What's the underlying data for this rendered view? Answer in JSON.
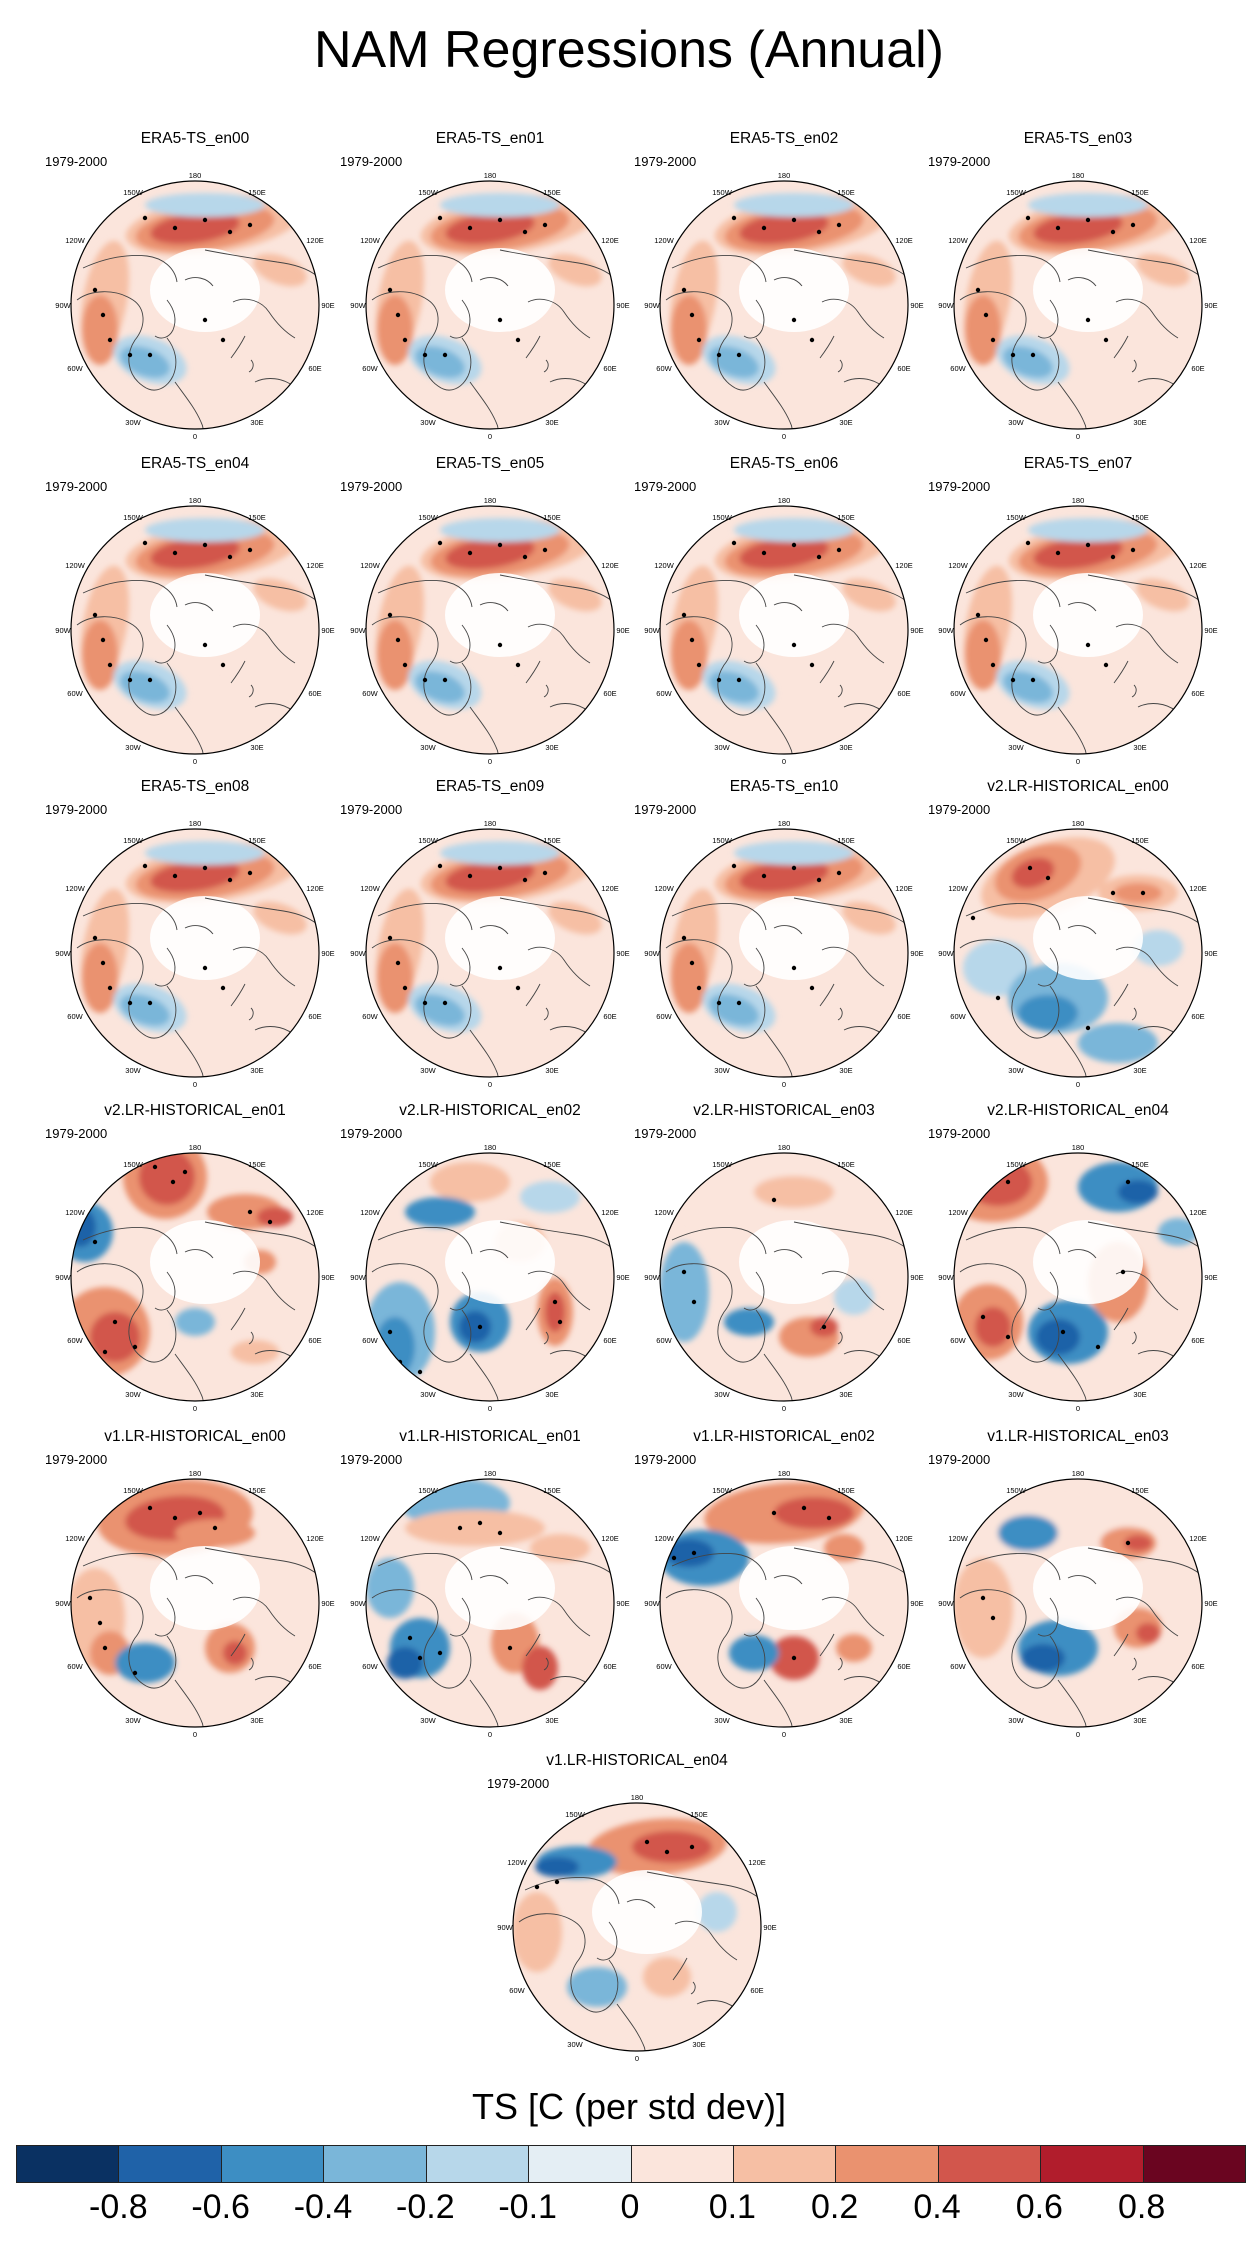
{
  "title": "NAM Regressions (Annual)",
  "panels": [
    {
      "title": "ERA5-TS_en00",
      "pattern": "era5",
      "period": "1979-2000"
    },
    {
      "title": "ERA5-TS_en01",
      "pattern": "era5",
      "period": "1979-2000"
    },
    {
      "title": "ERA5-TS_en02",
      "pattern": "era5",
      "period": "1979-2000"
    },
    {
      "title": "ERA5-TS_en03",
      "pattern": "era5",
      "period": "1979-2000"
    },
    {
      "title": "ERA5-TS_en04",
      "pattern": "era5",
      "period": "1979-2000"
    },
    {
      "title": "ERA5-TS_en05",
      "pattern": "era5",
      "period": "1979-2000"
    },
    {
      "title": "ERA5-TS_en06",
      "pattern": "era5",
      "period": "1979-2000"
    },
    {
      "title": "ERA5-TS_en07",
      "pattern": "era5",
      "period": "1979-2000"
    },
    {
      "title": "ERA5-TS_en08",
      "pattern": "era5",
      "period": "1979-2000"
    },
    {
      "title": "ERA5-TS_en09",
      "pattern": "era5",
      "period": "1979-2000"
    },
    {
      "title": "ERA5-TS_en10",
      "pattern": "era5",
      "period": "1979-2000"
    },
    {
      "title": "v2.LR-HISTORICAL_en00",
      "pattern": "v2a",
      "period": "1979-2000"
    },
    {
      "title": "v2.LR-HISTORICAL_en01",
      "pattern": "v2b",
      "period": "1979-2000"
    },
    {
      "title": "v2.LR-HISTORICAL_en02",
      "pattern": "v2c",
      "period": "1979-2000"
    },
    {
      "title": "v2.LR-HISTORICAL_en03",
      "pattern": "v2d",
      "period": "1979-2000"
    },
    {
      "title": "v2.LR-HISTORICAL_en04",
      "pattern": "v2e",
      "period": "1979-2000"
    },
    {
      "title": "v1.LR-HISTORICAL_en00",
      "pattern": "v1a",
      "period": "1979-2000"
    },
    {
      "title": "v1.LR-HISTORICAL_en01",
      "pattern": "v1b",
      "period": "1979-2000"
    },
    {
      "title": "v1.LR-HISTORICAL_en02",
      "pattern": "v1c",
      "period": "1979-2000"
    },
    {
      "title": "v1.LR-HISTORICAL_en03",
      "pattern": "v1d",
      "period": "1979-2000"
    },
    {
      "title": "v1.LR-HISTORICAL_en04",
      "pattern": "v1e",
      "period": "1979-2000"
    }
  ],
  "map_labels": {
    "lon_top": "180",
    "lon_bottom": "0",
    "lon_150w": "150W",
    "lon_150e": "150E",
    "lon_120w": "120W",
    "lon_120e": "120E",
    "lon_90w": "90W",
    "lon_90e": "90E",
    "lon_60w": "60W",
    "lon_60e": "60E",
    "lon_30w": "30W",
    "lon_30e": "30E"
  },
  "colorbar": {
    "title": "TS [C (per std dev)]",
    "colors": [
      "#0a3162",
      "#1f62a8",
      "#3d8ec3",
      "#7ab6d9",
      "#b7d7ea",
      "#e4eef4",
      "#fbe5dc",
      "#f6bfa4",
      "#ea926f",
      "#d2564c",
      "#b11d2c",
      "#6a0520"
    ],
    "labels": [
      "-0.8",
      "-0.6",
      "-0.4",
      "-0.2",
      "-0.1",
      "0",
      "0.1",
      "0.2",
      "0.4",
      "0.6",
      "0.8"
    ]
  }
}
